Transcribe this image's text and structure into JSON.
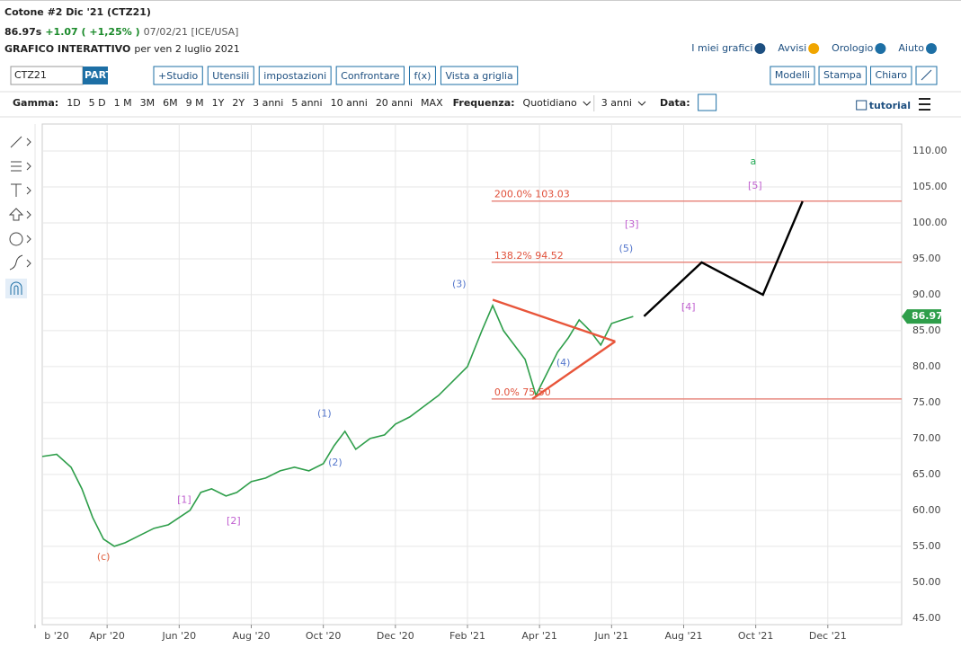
{
  "header": {
    "title": "Cotone #2 Dic '21 (CTZ21)",
    "price": "86.97s",
    "change": "+1.07 ( +1,25% )",
    "date_info": "07/02/21 [ICE/USA]",
    "subtitle_bold": "GRAFICO INTERATTIVO",
    "subtitle_rest": "per ven 2 luglio 2021",
    "links": [
      "I miei grafici",
      "Avvisi",
      "Orologio",
      "Aiuto"
    ]
  },
  "toolbar": {
    "symbol": "CTZ21",
    "part": "PART",
    "buttons": [
      "+Studio",
      "Utensili",
      "impostazioni",
      "Confrontare",
      "f(x)",
      "Vista a griglia"
    ],
    "right_buttons": [
      "Modelli",
      "Stampa",
      "Chiaro"
    ]
  },
  "range_bar": {
    "label": "Gamma:",
    "ranges": [
      "1D",
      "5 D",
      "1 M",
      "3M",
      "6M",
      "9 M",
      "1Y",
      "2Y",
      "3 anni",
      "5 anni",
      "10 anni",
      "20 anni",
      "MAX"
    ],
    "freq_label": "Frequenza:",
    "freq": "Quotidiano",
    "period": "3 anni",
    "date_label": "Data:",
    "tutorial": "tutorial"
  },
  "chart_data": {
    "type": "line",
    "xlim": [
      1.2,
      25.05
    ],
    "ylim": [
      44.1,
      113.75
    ],
    "xticks": [
      {
        "value": 1,
        "label": "b '20"
      },
      {
        "value": 3,
        "label": "Apr '20"
      },
      {
        "value": 5,
        "label": "Jun '20"
      },
      {
        "value": 7,
        "label": "Aug '20"
      },
      {
        "value": 9,
        "label": "Oct '20"
      },
      {
        "value": 11,
        "label": "Dec '20"
      },
      {
        "value": 13,
        "label": "Feb '21"
      },
      {
        "value": 15,
        "label": "Apr '21"
      },
      {
        "value": 17,
        "label": "Jun '21"
      },
      {
        "value": 19,
        "label": "Aug '21"
      },
      {
        "value": 21,
        "label": "Oct '21"
      },
      {
        "value": 23,
        "label": "Dec '21"
      }
    ],
    "yticks": [
      {
        "value": 45,
        "label": "45.00"
      },
      {
        "value": 50,
        "label": "50.00"
      },
      {
        "value": 55,
        "label": "55.00"
      },
      {
        "value": 60,
        "label": "60.00"
      },
      {
        "value": 65,
        "label": "65.00"
      },
      {
        "value": 70,
        "label": "70.00"
      },
      {
        "value": 75,
        "label": "75.00"
      },
      {
        "value": 80,
        "label": "80.00"
      },
      {
        "value": 85,
        "label": "85.00"
      },
      {
        "value": 90,
        "label": "90.00"
      },
      {
        "value": 95,
        "label": "95.00"
      },
      {
        "value": 100,
        "label": "100.00"
      },
      {
        "value": 105,
        "label": "105.00"
      },
      {
        "value": 110,
        "label": "110.00"
      }
    ],
    "grid": true,
    "series": [
      {
        "color": "#2e9e4a",
        "x": [
          1.2,
          1.6,
          2.0,
          2.3,
          2.6,
          2.9,
          3.2,
          3.5,
          3.9,
          4.3,
          4.7,
          5.0,
          5.3,
          5.6,
          5.9,
          6.3,
          6.6,
          7.0,
          7.4,
          7.8,
          8.2,
          8.6,
          9.0,
          9.3,
          9.6,
          9.9,
          10.3,
          10.7,
          11.0,
          11.4,
          11.8,
          12.2,
          12.6,
          13.0,
          13.4,
          13.7,
          14.0,
          14.3,
          14.6,
          14.9,
          15.2,
          15.5,
          15.8,
          16.1,
          16.4,
          16.7,
          17.0,
          17.3,
          17.6
        ],
        "values": [
          67.5,
          67.8,
          66,
          63,
          59,
          56,
          55,
          55.5,
          56.5,
          57.5,
          58,
          59,
          60,
          62.5,
          63,
          62,
          62.5,
          64,
          64.5,
          65.5,
          66,
          65.5,
          66.5,
          69,
          71,
          68.5,
          70,
          70.5,
          72,
          73,
          74.5,
          76,
          78,
          80,
          85,
          88.5,
          85,
          83,
          81,
          76,
          79,
          82,
          84,
          86.5,
          85,
          83,
          86,
          86.5,
          86.97
        ]
      }
    ],
    "last_price": 86.97,
    "overlays": [
      {
        "color": "#000000",
        "x": [
          17.9,
          19.5,
          21.2,
          22.3
        ],
        "values": [
          87,
          94.5,
          90,
          103
        ]
      },
      {
        "color": "#e8553a",
        "x": [
          13.7,
          17.1
        ],
        "values": [
          89.3,
          83.5
        ]
      },
      {
        "color": "#e8553a",
        "x": [
          14.8,
          17.1
        ],
        "values": [
          75.5,
          83.5
        ]
      }
    ],
    "fib_levels": [
      {
        "value": 103.03,
        "label": "200.0% 103.03"
      },
      {
        "value": 94.52,
        "label": "138.2% 94.52"
      },
      {
        "value": 75.5,
        "label": "0.0% 75.50"
      }
    ],
    "annotations": [
      {
        "text": "(c)",
        "x": 2.9,
        "y": 53.5,
        "color": "#e0603f",
        "size": 40
      },
      {
        "text": "[1]",
        "x": 5.14,
        "y": 61.4,
        "color": "#c060d0",
        "size": 30
      },
      {
        "text": "[2]",
        "x": 6.51,
        "y": 58.5,
        "color": "#c060d0",
        "size": 22
      },
      {
        "text": "(1)",
        "x": 9.03,
        "y": 73.4,
        "color": "#5577cc",
        "size": 20
      },
      {
        "text": "(2)",
        "x": 9.33,
        "y": 66.6,
        "color": "#5577cc",
        "size": 14
      },
      {
        "text": "(3)",
        "x": 12.77,
        "y": 91.4,
        "color": "#5577cc",
        "size": 18
      },
      {
        "text": "(4)",
        "x": 15.66,
        "y": 80.5,
        "color": "#5577cc",
        "size": 22
      },
      {
        "text": "[3]",
        "x": 17.56,
        "y": 99.75,
        "color": "#c060d0",
        "size": 26
      },
      {
        "text": "(5)",
        "x": 17.4,
        "y": 96.4,
        "color": "#5577cc",
        "size": 16
      },
      {
        "text": "[4]",
        "x": 19.13,
        "y": 88.25,
        "color": "#c060d0",
        "size": 24
      },
      {
        "text": "[5]",
        "x": 20.98,
        "y": 105.1,
        "color": "#c060d0",
        "size": 24
      },
      {
        "text": "a",
        "x": 20.93,
        "y": 108.5,
        "color": "#22aa55",
        "size": 36
      }
    ]
  }
}
